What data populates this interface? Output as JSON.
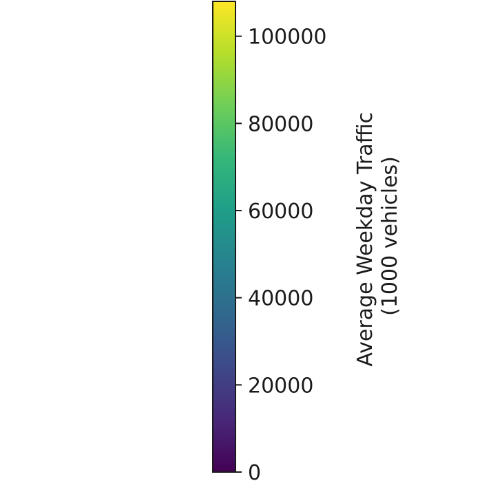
{
  "chart_data": {
    "type": "colorbar",
    "colormap": "viridis",
    "orientation": "vertical",
    "vmin": 0,
    "vmax": 108000,
    "ticks": [
      0,
      20000,
      40000,
      60000,
      80000,
      100000
    ],
    "tick_labels": [
      "0",
      "20000",
      "40000",
      "60000",
      "80000",
      "100000"
    ],
    "label_lines": [
      "Average Weekday Traffic",
      "(1000 vehicles)"
    ],
    "colormap_stops": [
      "#440154",
      "#482878",
      "#3e4989",
      "#31688e",
      "#26828e",
      "#1f9e89",
      "#35b779",
      "#6ece58",
      "#b5de2b",
      "#fde725"
    ]
  }
}
